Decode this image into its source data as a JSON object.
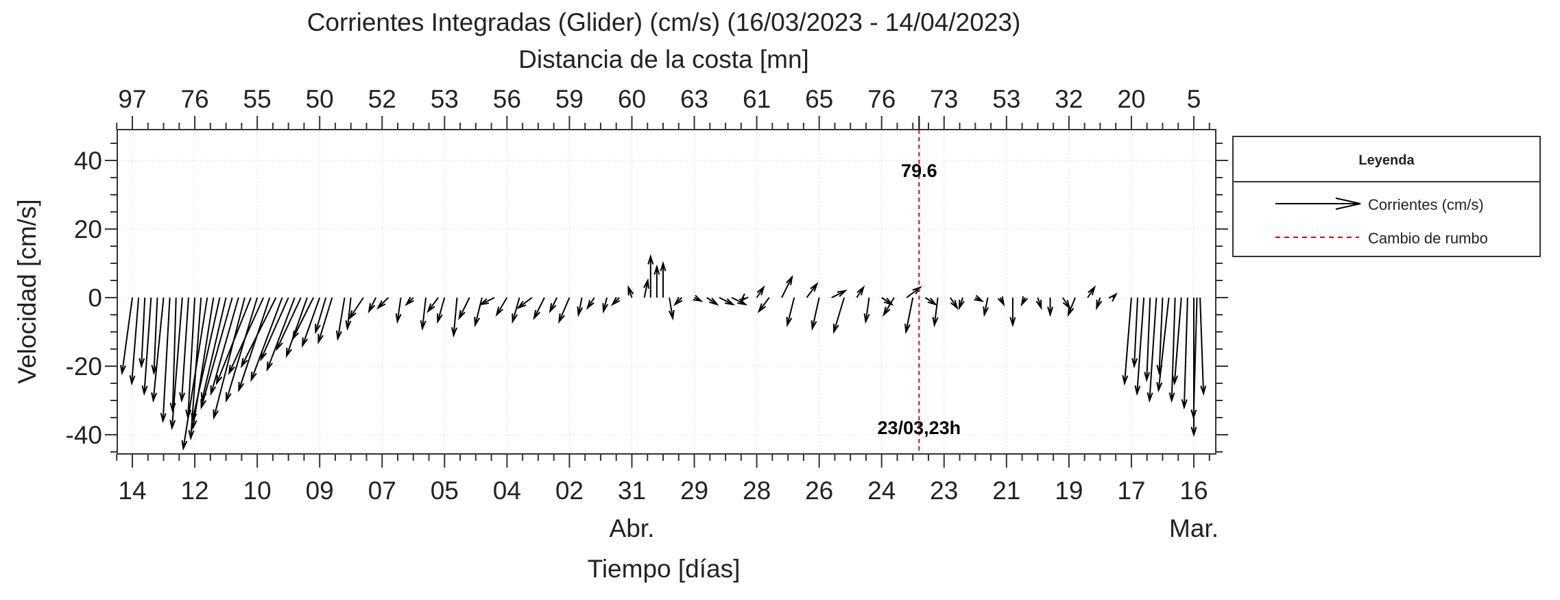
{
  "chart_data": {
    "type": "quiver",
    "title": "Corrientes Integradas (Glider) (cm/s) (16/03/2023 - 14/04/2023)",
    "top_axis_label": "Distancia de la costa [mn]",
    "top_ticks": [
      "97",
      "76",
      "55",
      "50",
      "52",
      "53",
      "56",
      "59",
      "60",
      "63",
      "61",
      "65",
      "76",
      "73",
      "53",
      "32",
      "20",
      "5"
    ],
    "xlabel": "Tiempo [días]",
    "x_ticks": [
      "14",
      "12",
      "10",
      "09",
      "07",
      "05",
      "04",
      "02",
      "31",
      "29",
      "28",
      "26",
      "24",
      "23",
      "21",
      "19",
      "17",
      "16"
    ],
    "month_labels": [
      {
        "tick": 8,
        "text": "Abr."
      },
      {
        "tick": 17,
        "text": "Mar."
      }
    ],
    "ylabel": "Velocidad [cm/s]",
    "ylim": [
      -47,
      47
    ],
    "y_ticks": [
      40,
      20,
      0,
      -20,
      -40
    ],
    "grid": true,
    "marker_line": {
      "tick": 12.6,
      "top_label": "79.6",
      "bottom_label": "23/03,23h",
      "color": "#e8000b"
    },
    "legend": {
      "title": "Leyenda",
      "position": "right",
      "entries": [
        {
          "label": "Corrientes (cm/s)",
          "style": "arrow",
          "color": "#000000"
        },
        {
          "label": "Cambio de rumbo",
          "style": "dashed",
          "color": "#e8000b"
        }
      ]
    },
    "vectors_note": "[tick position, u cm/s, v cm/s]",
    "vectors": [
      [
        0,
        -3,
        -22
      ],
      [
        0.1,
        -2,
        -25
      ],
      [
        0.2,
        -1,
        -20
      ],
      [
        0.3,
        -2,
        -28
      ],
      [
        0.4,
        -1,
        -22
      ],
      [
        0.5,
        -3,
        -30
      ],
      [
        0.6,
        -2,
        -36
      ],
      [
        0.7,
        -1,
        -33
      ],
      [
        0.8,
        -3,
        -38
      ],
      [
        0.9,
        -2,
        -30
      ],
      [
        1.0,
        -2,
        -35
      ],
      [
        1.1,
        -3,
        -41
      ],
      [
        1.2,
        -7,
        -44
      ],
      [
        1.3,
        -6,
        -38
      ],
      [
        1.4,
        -8,
        -36
      ],
      [
        1.5,
        -7,
        -30
      ],
      [
        1.6,
        -9,
        -32
      ],
      [
        1.7,
        -8,
        -28
      ],
      [
        1.8,
        -9,
        -35
      ],
      [
        1.9,
        -10,
        -25
      ],
      [
        2.0,
        -9,
        -30
      ],
      [
        2.1,
        -10,
        -22
      ],
      [
        2.2,
        -9,
        -27
      ],
      [
        2.3,
        -10,
        -20
      ],
      [
        2.4,
        -9,
        -24
      ],
      [
        2.5,
        -8,
        -18
      ],
      [
        2.6,
        -8,
        -21
      ],
      [
        2.7,
        -7,
        -15
      ],
      [
        2.8,
        -6,
        -17
      ],
      [
        2.9,
        -6,
        -12
      ],
      [
        3.0,
        -5,
        -14
      ],
      [
        3.1,
        -3,
        -10
      ],
      [
        3.2,
        -4,
        -13
      ],
      [
        3.4,
        -2,
        -12
      ],
      [
        3.5,
        -1,
        -9
      ],
      [
        3.7,
        -4,
        -6
      ],
      [
        3.9,
        -2,
        -4
      ],
      [
        4.1,
        -3,
        -3
      ],
      [
        4.3,
        -1,
        -7
      ],
      [
        4.5,
        -2,
        -2
      ],
      [
        4.7,
        -1,
        -9
      ],
      [
        4.9,
        -3,
        -4
      ],
      [
        5.0,
        -2,
        -7
      ],
      [
        5.2,
        -1,
        -11
      ],
      [
        5.4,
        -3,
        -6
      ],
      [
        5.6,
        -2,
        -8
      ],
      [
        5.8,
        -4,
        -2
      ],
      [
        6.0,
        -3,
        -5
      ],
      [
        6.2,
        -2,
        -7
      ],
      [
        6.4,
        -4,
        -3
      ],
      [
        6.6,
        -3,
        -6
      ],
      [
        6.8,
        -2,
        -4
      ],
      [
        7.0,
        -3,
        -7
      ],
      [
        7.2,
        -1,
        -5
      ],
      [
        7.4,
        -2,
        -3
      ],
      [
        7.6,
        -1,
        -4
      ],
      [
        7.8,
        -2,
        -2
      ],
      [
        8.0,
        -1,
        3
      ],
      [
        8.2,
        1,
        5
      ],
      [
        8.3,
        0,
        12
      ],
      [
        8.4,
        0,
        9
      ],
      [
        8.5,
        0,
        10
      ],
      [
        8.6,
        1,
        -6
      ],
      [
        8.8,
        -2,
        -2
      ],
      [
        9.0,
        2,
        -1
      ],
      [
        9.2,
        3,
        -2
      ],
      [
        9.4,
        4,
        -2
      ],
      [
        9.6,
        4,
        -2
      ],
      [
        9.8,
        -1,
        -1
      ],
      [
        10.0,
        2,
        3
      ],
      [
        10.2,
        -3,
        -4
      ],
      [
        10.4,
        3,
        6
      ],
      [
        10.6,
        -2,
        -8
      ],
      [
        10.8,
        3,
        4
      ],
      [
        11.0,
        -2,
        -9
      ],
      [
        11.2,
        4,
        2
      ],
      [
        11.4,
        -3,
        -10
      ],
      [
        11.6,
        2,
        3
      ],
      [
        11.8,
        -1,
        -7
      ],
      [
        12.0,
        3,
        -2
      ],
      [
        12.2,
        -3,
        -5
      ],
      [
        12.4,
        4,
        3
      ],
      [
        12.5,
        -2,
        -10
      ],
      [
        12.7,
        3,
        -2
      ],
      [
        12.9,
        -1,
        -8
      ],
      [
        13.1,
        2,
        -3
      ],
      [
        13.3,
        -1,
        -3
      ],
      [
        13.5,
        2,
        -1
      ],
      [
        13.7,
        -1,
        -5
      ],
      [
        13.9,
        1,
        -2
      ],
      [
        14.1,
        0,
        -8
      ],
      [
        14.3,
        -1,
        -2
      ],
      [
        14.5,
        1,
        -3
      ],
      [
        14.7,
        0,
        -5
      ],
      [
        14.9,
        2,
        -3
      ],
      [
        15.1,
        -2,
        -5
      ],
      [
        15.3,
        2,
        3
      ],
      [
        15.5,
        -1,
        -3
      ],
      [
        15.7,
        1,
        1
      ],
      [
        16.0,
        -2,
        -25
      ],
      [
        16.1,
        -1,
        -20
      ],
      [
        16.2,
        -2,
        -28
      ],
      [
        16.3,
        -1,
        -24
      ],
      [
        16.4,
        -2,
        -30
      ],
      [
        16.5,
        -1,
        -22
      ],
      [
        16.6,
        -3,
        -27
      ],
      [
        16.7,
        -1,
        -30
      ],
      [
        16.8,
        -2,
        -25
      ],
      [
        16.9,
        -1,
        -32
      ],
      [
        17.0,
        0,
        -40
      ],
      [
        17.05,
        -1,
        -35
      ],
      [
        17.1,
        1,
        -28
      ]
    ]
  }
}
